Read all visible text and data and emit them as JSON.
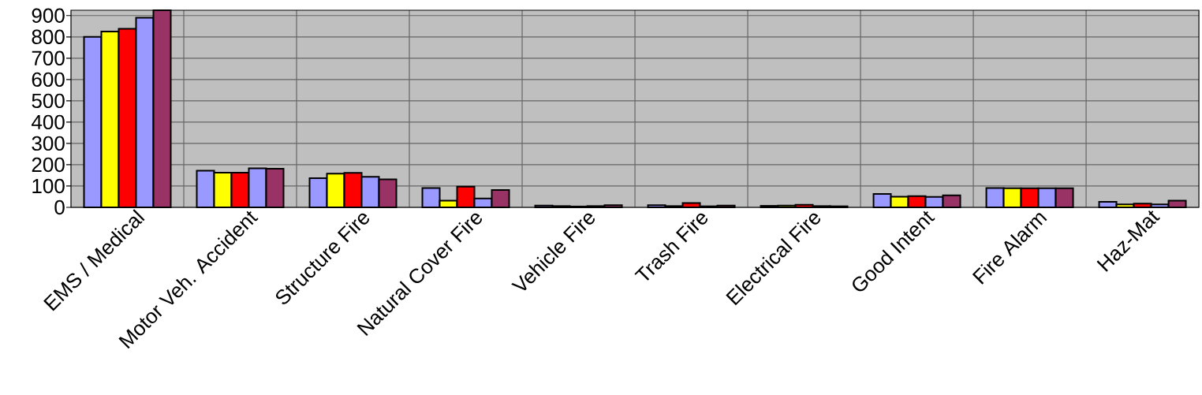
{
  "chart_data": {
    "type": "bar",
    "categories": [
      "EMS / Medical",
      "Motor Veh. Accident",
      "Structure Fire",
      "Natural Cover Fire",
      "Vehicle Fire",
      "Trash Fire",
      "Electrical Fire",
      "Good Intent",
      "Fire Alarm",
      "Haz-Mat"
    ],
    "series": [
      {
        "color": "#9999ff",
        "values": [
          800,
          172,
          137,
          91,
          8,
          10,
          7,
          63,
          91,
          26
        ]
      },
      {
        "color": "#ffff00",
        "values": [
          825,
          163,
          158,
          31,
          6,
          6,
          8,
          50,
          90,
          14
        ]
      },
      {
        "color": "#ff0000",
        "values": [
          838,
          163,
          162,
          97,
          4,
          20,
          12,
          53,
          90,
          18
        ]
      },
      {
        "color": "#9999ff",
        "values": [
          890,
          183,
          143,
          42,
          6,
          5,
          6,
          49,
          90,
          14
        ]
      },
      {
        "color": "#993366",
        "values": [
          925,
          181,
          131,
          81,
          10,
          8,
          5,
          56,
          90,
          31
        ]
      }
    ],
    "ylim": [
      0,
      925
    ],
    "yticks": [
      0,
      100,
      200,
      300,
      400,
      500,
      600,
      700,
      800,
      900
    ],
    "grid": true
  }
}
